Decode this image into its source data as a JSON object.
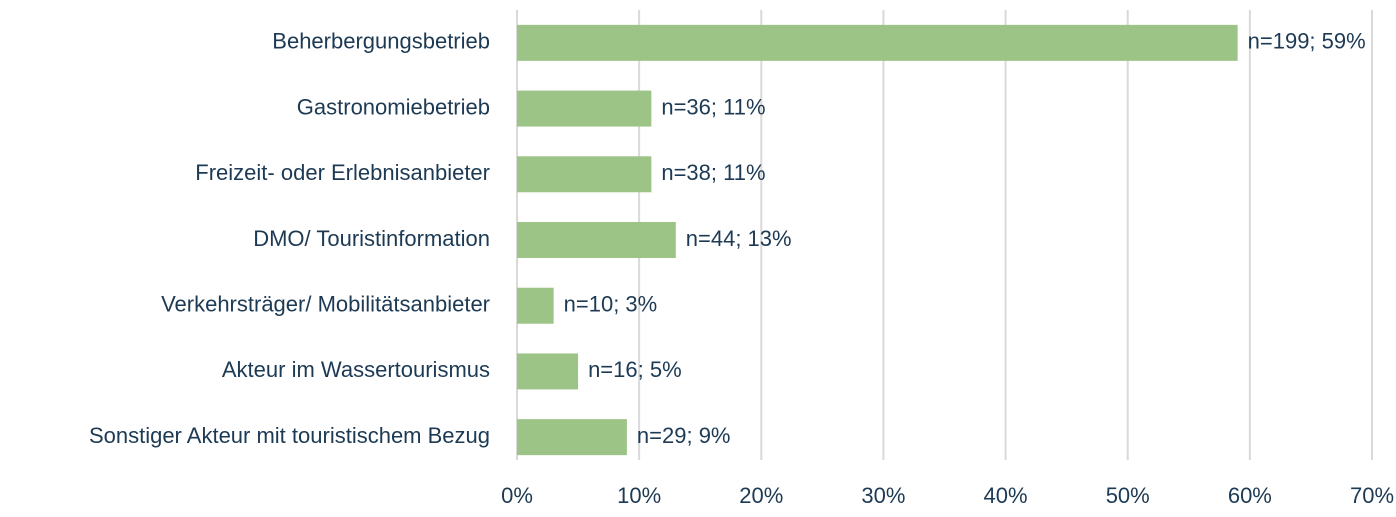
{
  "chart_data": {
    "type": "hbar",
    "categories": [
      "Beherbergungsbetrieb",
      "Gastronomiebetrieb",
      "Freizeit- oder Erlebnisanbieter",
      "DMO/ Touristinformation",
      "Verkehrsträger/ Mobilitätsanbieter",
      "Akteur im Wassertourismus",
      "Sonstiger Akteur mit touristischem Bezug"
    ],
    "values": [
      59,
      11,
      11,
      13,
      3,
      5,
      9
    ],
    "value_labels": [
      "n=199; 59%",
      "n=36; 11%",
      "n=38; 11%",
      "n=44; 13%",
      "n=10; 3%",
      "n=16; 5%",
      "n=29; 9%"
    ],
    "color": "#9dc487",
    "xlim": [
      0,
      70
    ],
    "xticks": [
      {
        "value": 0,
        "label": "0%"
      },
      {
        "value": 10,
        "label": "10%"
      },
      {
        "value": 20,
        "label": "20%"
      },
      {
        "value": 30,
        "label": "30%"
      },
      {
        "value": 40,
        "label": "40%"
      },
      {
        "value": 50,
        "label": "50%"
      },
      {
        "value": 60,
        "label": "60%"
      },
      {
        "value": 70,
        "label": "70%"
      }
    ],
    "grid": true
  }
}
